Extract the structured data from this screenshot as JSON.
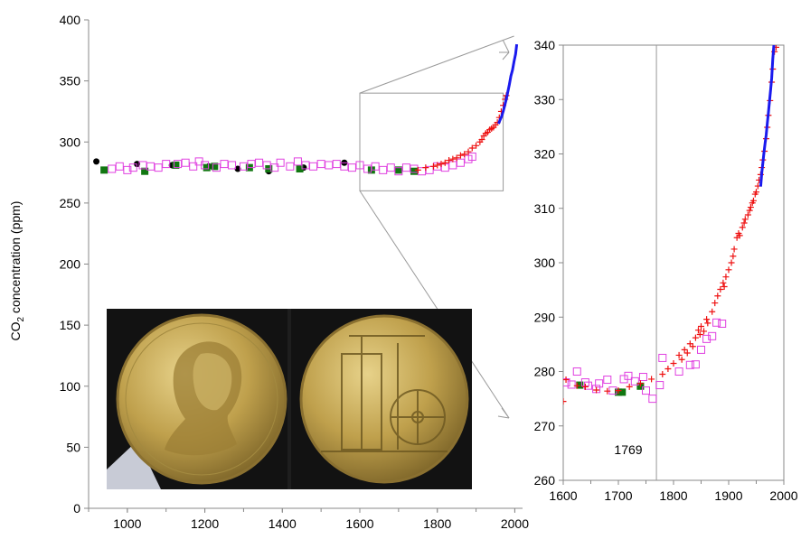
{
  "chart_data": [
    {
      "type": "scatter",
      "title": "",
      "xlabel": "",
      "ylabel": "CO",
      "ylabel_subscript": "2",
      "ylabel_rest": " concentration (ppm)",
      "xlim": [
        900,
        2020
      ],
      "ylim": [
        0,
        400
      ],
      "xticks": [
        "1000",
        "1200",
        "1400",
        "1600",
        "1800",
        "2000"
      ],
      "yticks": [
        "0",
        "50",
        "100",
        "150",
        "200",
        "250",
        "300",
        "350",
        "400"
      ],
      "inset_box": {
        "x": [
          1600,
          1970
        ],
        "y": [
          260,
          340
        ]
      },
      "series": [
        {
          "marker": "circle",
          "color": "#000000",
          "points": [
            [
              920,
              284
            ],
            [
              1025,
              282
            ],
            [
              1115,
              281
            ],
            [
              1210,
              280
            ],
            [
              1285,
              278
            ],
            [
              1365,
              276
            ],
            [
              1455,
              279
            ],
            [
              1560,
              283
            ]
          ]
        },
        {
          "marker": "square-filled",
          "color": "#117711",
          "points": [
            [
              940,
              277
            ],
            [
              1045,
              276
            ],
            [
              1125,
              281
            ],
            [
              1205,
              279
            ],
            [
              1225,
              280
            ],
            [
              1315,
              279
            ],
            [
              1365,
              278
            ],
            [
              1445,
              278
            ],
            [
              1630,
              277
            ],
            [
              1700,
              277
            ],
            [
              1740,
              276
            ]
          ]
        },
        {
          "marker": "square-open",
          "color": "#e040e0",
          "points": [
            [
              960,
              278
            ],
            [
              980,
              280
            ],
            [
              1000,
              277
            ],
            [
              1015,
              279
            ],
            [
              1040,
              281
            ],
            [
              1060,
              280
            ],
            [
              1080,
              279
            ],
            [
              1100,
              282
            ],
            [
              1130,
              282
            ],
            [
              1150,
              283
            ],
            [
              1170,
              280
            ],
            [
              1185,
              284
            ],
            [
              1200,
              281
            ],
            [
              1230,
              279
            ],
            [
              1250,
              282
            ],
            [
              1270,
              281
            ],
            [
              1300,
              280
            ],
            [
              1320,
              282
            ],
            [
              1340,
              283
            ],
            [
              1360,
              281
            ],
            [
              1380,
              279
            ],
            [
              1395,
              283
            ],
            [
              1420,
              280
            ],
            [
              1440,
              284
            ],
            [
              1460,
              281
            ],
            [
              1480,
              280
            ],
            [
              1500,
              282
            ],
            [
              1520,
              281
            ],
            [
              1540,
              282
            ],
            [
              1560,
              280
            ],
            [
              1580,
              279
            ],
            [
              1600,
              281
            ],
            [
              1620,
              278
            ],
            [
              1640,
              280
            ],
            [
              1660,
              277
            ],
            [
              1680,
              279
            ],
            [
              1700,
              276
            ],
            [
              1720,
              279
            ],
            [
              1740,
              278
            ],
            [
              1760,
              276
            ],
            [
              1780,
              277
            ],
            [
              1800,
              280
            ],
            [
              1820,
              279
            ],
            [
              1840,
              281
            ],
            [
              1860,
              283
            ],
            [
              1880,
              286
            ],
            [
              1890,
              288
            ]
          ]
        },
        {
          "marker": "plus",
          "color": "#ee1111",
          "points": [
            [
              1750,
              277
            ],
            [
              1770,
              279
            ],
            [
              1790,
              280
            ],
            [
              1800,
              281
            ],
            [
              1810,
              282
            ],
            [
              1820,
              283
            ],
            [
              1830,
              285
            ],
            [
              1840,
              286
            ],
            [
              1850,
              287
            ],
            [
              1860,
              289
            ],
            [
              1870,
              290
            ],
            [
              1880,
              292
            ],
            [
              1890,
              295
            ],
            [
              1900,
              297
            ],
            [
              1910,
              300
            ],
            [
              1915,
              302
            ],
            [
              1920,
              305
            ],
            [
              1925,
              307
            ],
            [
              1930,
              308
            ],
            [
              1935,
              310
            ],
            [
              1940,
              311
            ],
            [
              1945,
              312
            ],
            [
              1950,
              314
            ],
            [
              1955,
              316
            ],
            [
              1960,
              320
            ],
            [
              1965,
              325
            ],
            [
              1970,
              330
            ],
            [
              1975,
              335
            ],
            [
              1978,
              338
            ]
          ]
        },
        {
          "marker": "line",
          "color": "#1a1aee",
          "points": [
            [
              1958,
              315
            ],
            [
              1962,
              318
            ],
            [
              1966,
              321
            ],
            [
              1970,
              325
            ],
            [
              1974,
              330
            ],
            [
              1978,
              335
            ],
            [
              1982,
              341
            ],
            [
              1986,
              347
            ],
            [
              1990,
              354
            ],
            [
              1994,
              359
            ],
            [
              1998,
              366
            ],
            [
              2002,
              372
            ],
            [
              2005,
              380
            ]
          ]
        }
      ]
    },
    {
      "type": "scatter",
      "title": "",
      "xlabel": "",
      "ylabel": "",
      "xlim": [
        1600,
        2000
      ],
      "ylim": [
        260,
        340
      ],
      "xticks": [
        "1600",
        "1700",
        "1800",
        "1900",
        "2000"
      ],
      "yticks": [
        "260",
        "270",
        "280",
        "290",
        "300",
        "310",
        "320",
        "330",
        "340"
      ],
      "vline_x": 1769,
      "annotation": "1769",
      "series": [
        {
          "marker": "square-filled",
          "color": "#117711",
          "points": [
            [
              1630,
              277.5
            ],
            [
              1700,
              276.2
            ],
            [
              1707,
              276.2
            ],
            [
              1740,
              277.3
            ]
          ]
        },
        {
          "marker": "square-open",
          "color": "#e040e0",
          "points": [
            [
              1605,
              278
            ],
            [
              1615,
              277.6
            ],
            [
              1625,
              280
            ],
            [
              1640,
              278
            ],
            [
              1645,
              277.4
            ],
            [
              1660,
              276.8
            ],
            [
              1665,
              277.8
            ],
            [
              1680,
              278.5
            ],
            [
              1690,
              276.5
            ],
            [
              1710,
              278.6
            ],
            [
              1718,
              279.2
            ],
            [
              1730,
              278.2
            ],
            [
              1745,
              279
            ],
            [
              1750,
              276.5
            ],
            [
              1762,
              275
            ],
            [
              1775,
              277.5
            ],
            [
              1780,
              282.5
            ],
            [
              1810,
              280
            ],
            [
              1830,
              281.2
            ],
            [
              1840,
              281.3
            ],
            [
              1850,
              284
            ],
            [
              1860,
              286
            ],
            [
              1870,
              286.5
            ],
            [
              1878,
              289
            ],
            [
              1888,
              288.8
            ]
          ]
        },
        {
          "marker": "plus",
          "color": "#ee1111",
          "points": [
            [
              1600,
              274.5
            ],
            [
              1605,
              278.5
            ],
            [
              1625,
              277.4
            ],
            [
              1640,
              277.2
            ],
            [
              1660,
              276.6
            ],
            [
              1680,
              276.4
            ],
            [
              1700,
              276.5
            ],
            [
              1720,
              277.2
            ],
            [
              1740,
              277.8
            ],
            [
              1760,
              278.6
            ],
            [
              1780,
              279.5
            ],
            [
              1790,
              280.5
            ],
            [
              1800,
              281.5
            ],
            [
              1810,
              283
            ],
            [
              1815,
              282.2
            ],
            [
              1820,
              284
            ],
            [
              1825,
              283.4
            ],
            [
              1830,
              285.1
            ],
            [
              1835,
              284.6
            ],
            [
              1840,
              286.2
            ],
            [
              1845,
              287.6
            ],
            [
              1848,
              286.8
            ],
            [
              1850,
              288.3
            ],
            [
              1855,
              287.4
            ],
            [
              1860,
              289.6
            ],
            [
              1862,
              288.9
            ],
            [
              1870,
              291
            ],
            [
              1875,
              292.6
            ],
            [
              1880,
              293.9
            ],
            [
              1885,
              295.1
            ],
            [
              1890,
              296.3
            ],
            [
              1892,
              295.6
            ],
            [
              1895,
              297.4
            ],
            [
              1900,
              298.7
            ],
            [
              1905,
              300
            ],
            [
              1908,
              301.2
            ],
            [
              1910,
              302.5
            ],
            [
              1915,
              304.6
            ],
            [
              1918,
              305.4
            ],
            [
              1920,
              305
            ],
            [
              1925,
              306.5
            ],
            [
              1928,
              307.3
            ],
            [
              1930,
              308
            ],
            [
              1935,
              308.8
            ],
            [
              1938,
              309.6
            ],
            [
              1940,
              310.2
            ],
            [
              1943,
              311
            ],
            [
              1945,
              311.4
            ],
            [
              1948,
              312.6
            ],
            [
              1950,
              313
            ],
            [
              1953,
              314.1
            ],
            [
              1955,
              315.2
            ],
            [
              1958,
              316.2
            ],
            [
              1960,
              317.5
            ],
            [
              1962,
              318.9
            ],
            [
              1965,
              320.5
            ],
            [
              1968,
              322.8
            ],
            [
              1970,
              324.9
            ],
            [
              1972,
              327.1
            ],
            [
              1975,
              329.8
            ],
            [
              1978,
              333.2
            ],
            [
              1980,
              335.6
            ],
            [
              1983,
              338.8
            ],
            [
              1986,
              339.6
            ]
          ]
        },
        {
          "marker": "line",
          "color": "#1a1aee",
          "points": [
            [
              1958,
              314
            ],
            [
              1960,
              316.5
            ],
            [
              1962,
              318.3
            ],
            [
              1964,
              320.2
            ],
            [
              1966,
              322
            ],
            [
              1968,
              323.5
            ],
            [
              1970,
              325.6
            ],
            [
              1972,
              327.5
            ],
            [
              1974,
              329.6
            ],
            [
              1976,
              331.8
            ],
            [
              1978,
              334
            ],
            [
              1980,
              337.5
            ],
            [
              1982,
              340
            ]
          ]
        }
      ]
    }
  ],
  "medal_photo": {
    "background": "#141414",
    "medal_color": "#b89a45",
    "medal_highlight": "#dcc57a",
    "medal_shadow": "#7a6228",
    "description_icon": "medal-portrait-and-steam-engine"
  }
}
